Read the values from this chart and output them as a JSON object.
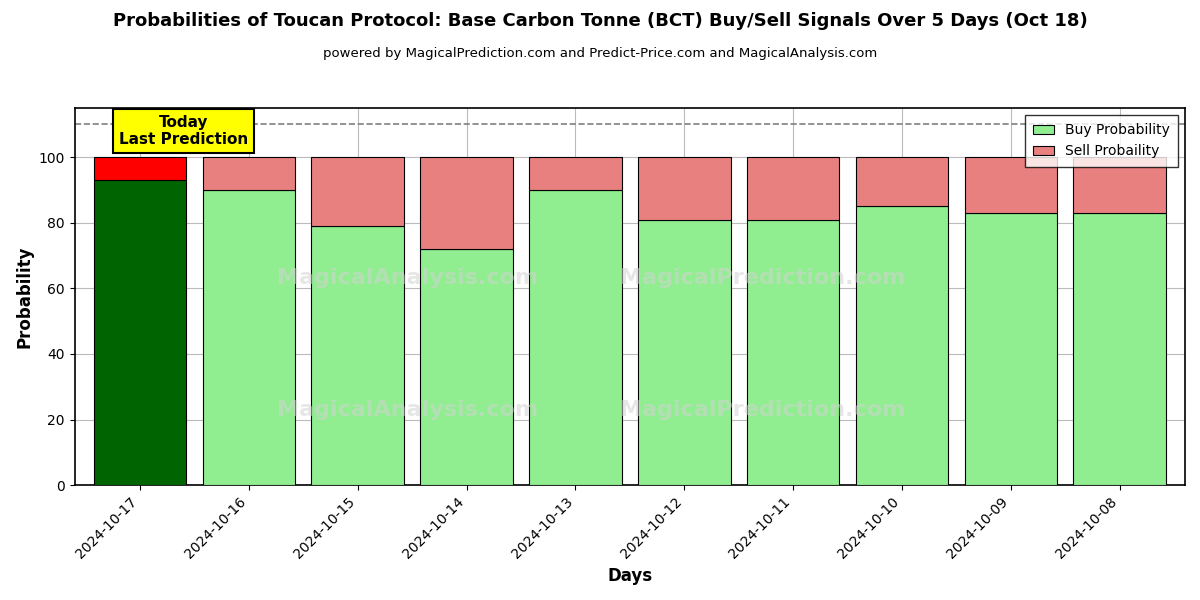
{
  "title": "Probabilities of Toucan Protocol: Base Carbon Tonne (BCT) Buy/Sell Signals Over 5 Days (Oct 18)",
  "subtitle": "powered by MagicalPrediction.com and Predict-Price.com and MagicalAnalysis.com",
  "xlabel": "Days",
  "ylabel": "Probability",
  "days": [
    "2024-10-17",
    "2024-10-16",
    "2024-10-15",
    "2024-10-14",
    "2024-10-13",
    "2024-10-12",
    "2024-10-11",
    "2024-10-10",
    "2024-10-09",
    "2024-10-08"
  ],
  "buy_probs": [
    93,
    90,
    79,
    72,
    90,
    81,
    81,
    85,
    83,
    83
  ],
  "sell_probs": [
    7,
    10,
    21,
    28,
    10,
    19,
    19,
    15,
    17,
    17
  ],
  "today_buy_color": "#006400",
  "today_sell_color": "#FF0000",
  "buy_color": "#90EE90",
  "sell_color": "#E88080",
  "dashed_line_y": 110,
  "ylim": [
    0,
    115
  ],
  "yticks": [
    0,
    20,
    40,
    60,
    80,
    100
  ],
  "today_label_text": "Today\nLast Prediction",
  "today_label_bg": "#FFFF00",
  "today_label_border": "#000000",
  "watermark_texts": [
    "MagicalAnalysis.com",
    "MagicalPrediction.com"
  ],
  "legend_buy": "Buy Probability",
  "legend_sell": "Sell Probaility",
  "background_color": "#FFFFFF",
  "grid_color": "#BBBBBB",
  "bar_width": 0.85
}
